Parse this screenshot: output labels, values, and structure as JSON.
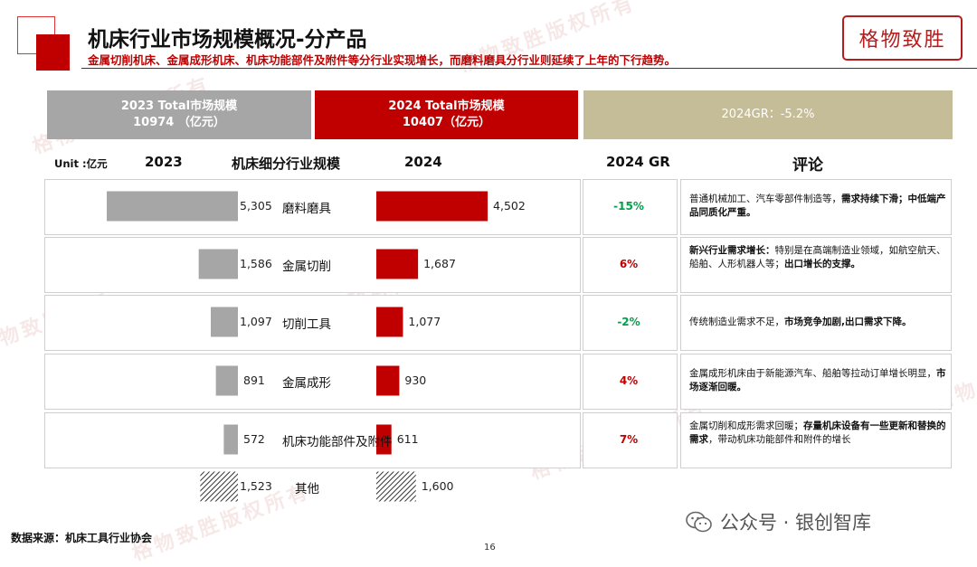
{
  "header": {
    "title": "机床行业市场规模概况-分产品",
    "subtitle": "金属切削机床、金属成形机床、机床功能部件及附件等分行业实现增长，而磨料磨具分行业则延续了上年的下行趋势。",
    "brand": "格物致胜"
  },
  "summary": {
    "box2023_line1": "2023 Total市场规模",
    "box2023_line2": "10974 （亿元）",
    "box2024_line1": "2024 Total市场规模",
    "box2024_line2": "10407（亿元）",
    "growth": "2024GR：-5.2%"
  },
  "columns": {
    "unit": "Unit :亿元",
    "y2023": "2023",
    "segment": "机床细分行业规模",
    "y2024": "2024",
    "gr": "2024 GR",
    "comment": "评论"
  },
  "chart_data": {
    "type": "bar",
    "orientation": "horizontal-butterfly",
    "categories": [
      "磨料磨具",
      "金属切削",
      "切削工具",
      "金属成形",
      "机床功能部件及附件",
      "其他"
    ],
    "series": [
      {
        "name": "2023",
        "values": [
          5305,
          1586,
          1097,
          891,
          572,
          1523
        ],
        "labels": [
          "5,305",
          "1,586",
          "1,097",
          "891",
          "572",
          "1,523"
        ]
      },
      {
        "name": "2024",
        "values": [
          4502,
          1687,
          1077,
          930,
          611,
          1600
        ],
        "labels": [
          "4,502",
          "1,687",
          "1,077",
          "930",
          "611",
          "1,600"
        ]
      }
    ],
    "growth": [
      "-15%",
      "6%",
      "-2%",
      "4%",
      "7%"
    ],
    "hatched_category": "其他"
  },
  "comments": [
    {
      "normal": "普通机械加工、汽车零部件制造等，",
      "bold": "需求持续下滑；中低端产品同质化严重。"
    },
    {
      "bold_head": "新兴行业需求增长：",
      "normal": "特别是在高端制造业领域，如航空航天、船舶、人形机器人等；",
      "bold": "出口增长的支撑。"
    },
    {
      "normal": "传统制造业需求不足，",
      "bold": "市场竞争加剧,出口需求下降。"
    },
    {
      "normal": "金属成形机床由于新能源汽车、船舶等拉动订单增长明显，",
      "bold": "市场逐渐回暖。"
    },
    {
      "normal": "金属切削和成形需求回暖；",
      "bold": "存量机床设备有一些更新和替换的需求",
      "tail": "，带动机床功能部件和附件的增长"
    }
  ],
  "colors": {
    "red": "#c00000",
    "gray": "#a6a6a6",
    "khaki": "#c4bd97",
    "green": "#00a04a"
  },
  "footer": {
    "source": "数据来源：机床工具行业协会",
    "page": "16",
    "wechat": "公众号 · 银创智库"
  },
  "watermark": "格物致胜版权所有"
}
